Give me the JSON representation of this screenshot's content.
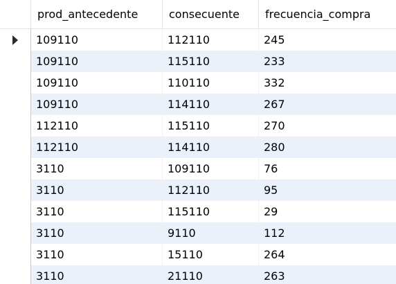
{
  "columns": [
    "prod_antecedente",
    "consecuente",
    "frecuencia_compra"
  ],
  "current_row_indicator": "triangle-right-icon",
  "rows": [
    [
      "109110",
      "112110",
      "245"
    ],
    [
      "109110",
      "115110",
      "233"
    ],
    [
      "109110",
      "110110",
      "332"
    ],
    [
      "109110",
      "114110",
      "267"
    ],
    [
      "112110",
      "115110",
      "270"
    ],
    [
      "112110",
      "114110",
      "280"
    ],
    [
      "3110",
      "109110",
      "76"
    ],
    [
      "3110",
      "112110",
      "95"
    ],
    [
      "3110",
      "115110",
      "29"
    ],
    [
      "3110",
      "9110",
      "112"
    ],
    [
      "3110",
      "15110",
      "264"
    ],
    [
      "3110",
      "21110",
      "263"
    ]
  ],
  "colors": {
    "alt_row": "#eaf1fb",
    "border": "#e3e3e3"
  }
}
